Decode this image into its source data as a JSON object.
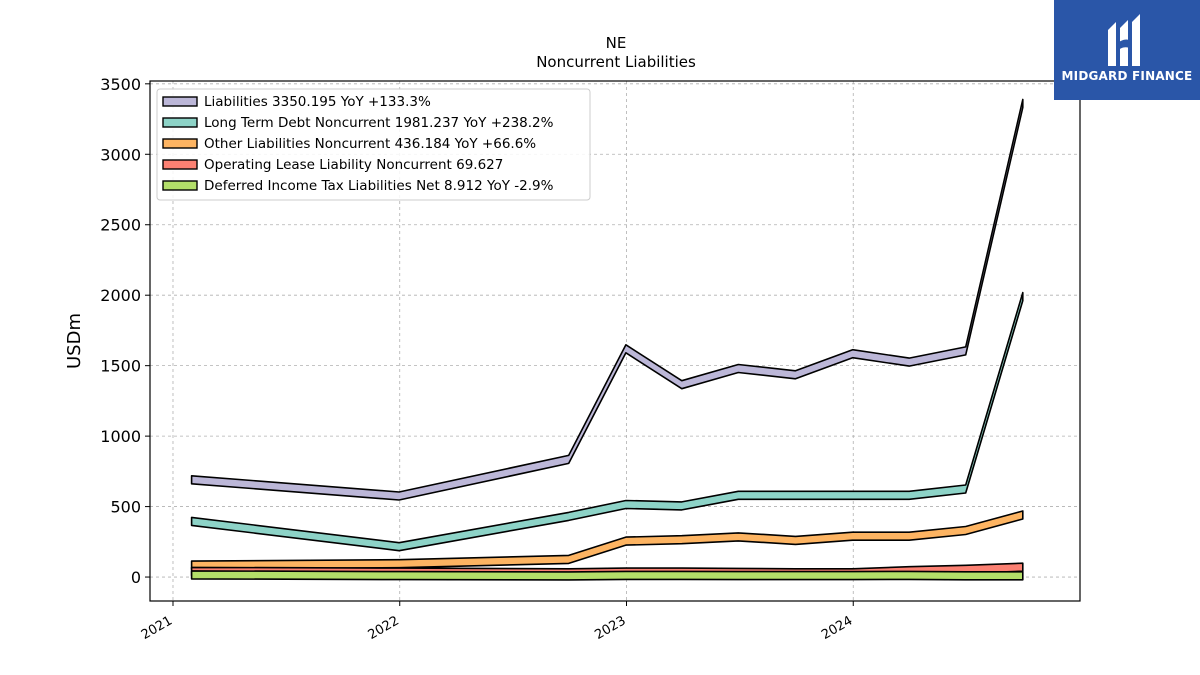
{
  "brand": {
    "name": "MIDGARD FINANCE",
    "bg_color": "#2a56a8"
  },
  "chart_data": {
    "type": "area",
    "title": "NE",
    "subtitle": "Noncurrent  Liabilities",
    "ylabel": "USDm",
    "xlabel": "",
    "ylim": [
      -170,
      3520
    ],
    "yticks": [
      0,
      500,
      1000,
      1500,
      2000,
      2500,
      3000,
      3500
    ],
    "xticks": [
      "2021",
      "2022",
      "2023",
      "2024"
    ],
    "xlim": [
      "2020-11-25",
      "2024-12-31"
    ],
    "grid": true,
    "legend_position": "upper-left",
    "x": [
      "2021-01-31",
      "2021-12-31",
      "2022-09-30",
      "2022-12-31",
      "2023-03-31",
      "2023-06-30",
      "2023-09-30",
      "2023-12-31",
      "2024-03-31",
      "2024-06-30",
      "2024-09-30"
    ],
    "series": [
      {
        "name": "Liabilities",
        "legend": "Liabilities  3350.195 YoY +133.3%",
        "color": "#bcb7d8",
        "values": [
          690,
          575,
          835,
          1620,
          1365,
          1480,
          1435,
          1585,
          1525,
          1605,
          3360
        ]
      },
      {
        "name": "Long Term Debt Noncurrent",
        "legend": "Long Term Debt Noncurrent  1981.237 YoY +238.2%",
        "color": "#8dd3c7",
        "values": [
          395,
          215,
          430,
          515,
          505,
          580,
          580,
          580,
          580,
          625,
          1990
        ]
      },
      {
        "name": "Other Liabilities Noncurrent",
        "legend": "Other Liabilities Noncurrent  436.184 YoY +66.6%",
        "color": "#fdb462",
        "values": [
          85,
          95,
          125,
          255,
          265,
          285,
          260,
          290,
          290,
          330,
          440
        ]
      },
      {
        "name": "Operating Lease Liability Noncurrent",
        "legend": "Operating Lease Liability Noncurrent  69.627",
        "color": "#fb8072",
        "values": [
          40,
          35,
          30,
          35,
          35,
          33,
          30,
          30,
          45,
          55,
          70
        ]
      },
      {
        "name": "Deferred Income Tax Liabilities Net",
        "legend": "Deferred Income Tax Liabilities Net  8.912 YoY -2.9%",
        "color": "#b3de69",
        "values": [
          15,
          10,
          8,
          12,
          12,
          10,
          10,
          10,
          12,
          9,
          9
        ]
      }
    ]
  }
}
